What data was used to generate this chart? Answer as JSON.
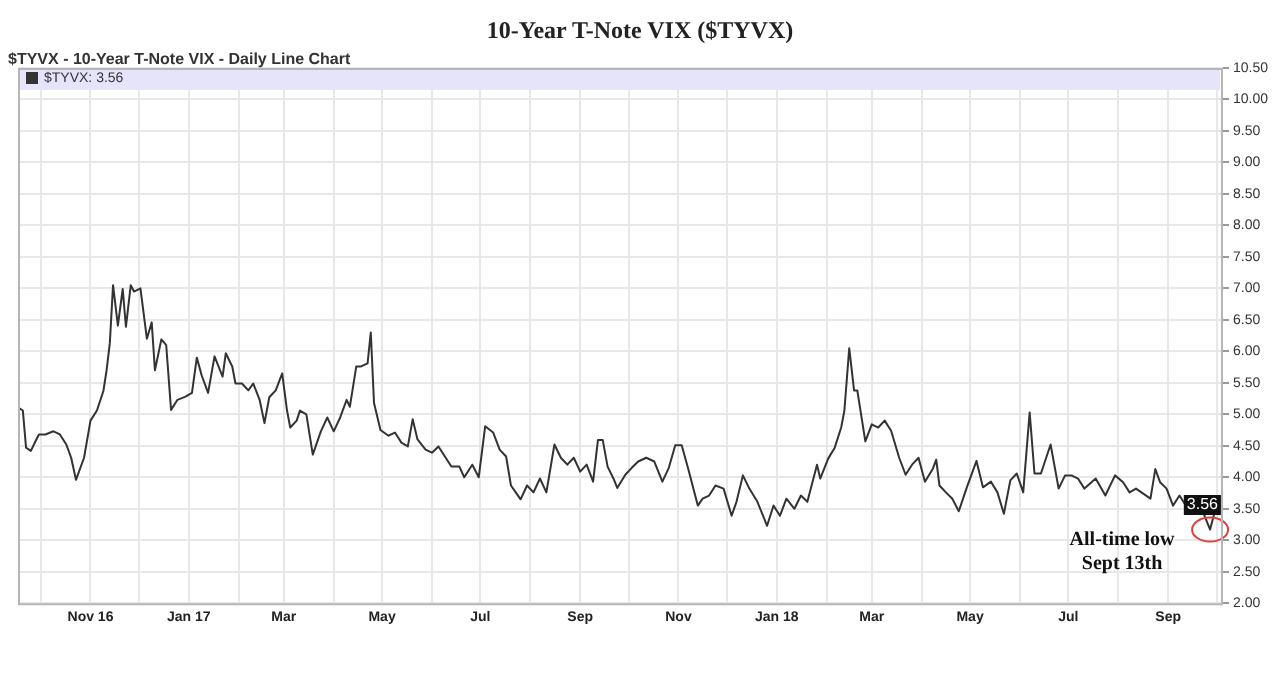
{
  "chart_data": {
    "type": "line",
    "title": "10-Year T-Note VIX ($TYVX)",
    "subtitle": "$TYVX - 10-Year T-Note VIX - Daily Line Chart",
    "x": [
      "2016-09-17",
      "2016-09-20",
      "2016-09-22",
      "2016-09-25",
      "2016-09-28",
      "2016-09-30",
      "2016-10-04",
      "2016-10-09",
      "2016-10-13",
      "2016-10-17",
      "2016-10-20",
      "2016-10-23",
      "2016-10-28",
      "2016-11-01",
      "2016-11-05",
      "2016-11-09",
      "2016-11-11",
      "2016-11-13",
      "2016-11-15",
      "2016-11-18",
      "2016-11-21",
      "2016-11-23",
      "2016-11-26",
      "2016-11-28",
      "2016-12-02",
      "2016-12-06",
      "2016-12-09",
      "2016-12-11",
      "2016-12-15",
      "2016-12-18",
      "2016-12-21",
      "2016-12-25",
      "2016-12-30",
      "2017-01-03",
      "2017-01-06",
      "2017-01-09",
      "2017-01-13",
      "2017-01-17",
      "2017-01-22",
      "2017-01-24",
      "2017-01-28",
      "2017-01-30",
      "2017-02-03",
      "2017-02-07",
      "2017-02-10",
      "2017-02-14",
      "2017-02-17",
      "2017-02-20",
      "2017-02-24",
      "2017-02-28",
      "2017-03-03",
      "2017-03-05",
      "2017-03-09",
      "2017-03-11",
      "2017-03-15",
      "2017-03-19",
      "2017-03-24",
      "2017-03-28",
      "2017-04-01",
      "2017-04-05",
      "2017-04-09",
      "2017-04-11",
      "2017-04-15",
      "2017-04-18",
      "2017-04-22",
      "2017-04-24",
      "2017-04-26",
      "2017-04-30",
      "2017-05-05",
      "2017-05-09",
      "2017-05-13",
      "2017-05-17",
      "2017-05-20",
      "2017-05-23",
      "2017-05-28",
      "2017-06-01",
      "2017-06-05",
      "2017-06-09",
      "2017-06-13",
      "2017-06-18",
      "2017-06-21",
      "2017-06-26",
      "2017-06-30",
      "2017-07-04",
      "2017-07-09",
      "2017-07-13",
      "2017-07-17",
      "2017-07-20",
      "2017-07-23",
      "2017-07-26",
      "2017-07-30",
      "2017-08-03",
      "2017-08-07",
      "2017-08-11",
      "2017-08-16",
      "2017-08-20",
      "2017-08-24",
      "2017-08-28",
      "2017-09-01",
      "2017-09-05",
      "2017-09-09",
      "2017-09-12",
      "2017-09-15",
      "2017-09-18",
      "2017-09-22",
      "2017-09-24",
      "2017-09-29",
      "2017-10-03",
      "2017-10-07",
      "2017-10-12",
      "2017-10-17",
      "2017-10-22",
      "2017-10-26",
      "2017-10-30",
      "2017-11-03",
      "2017-11-07",
      "2017-11-13",
      "2017-11-16",
      "2017-11-20",
      "2017-11-24",
      "2017-11-29",
      "2017-12-04",
      "2017-12-07",
      "2017-12-11",
      "2017-12-15",
      "2017-12-20",
      "2017-12-26",
      "2017-12-30",
      "2018-01-03",
      "2018-01-07",
      "2018-01-12",
      "2018-01-16",
      "2018-01-20",
      "2018-01-26",
      "2018-01-28",
      "2018-02-02",
      "2018-02-06",
      "2018-02-10",
      "2018-02-12",
      "2018-02-15",
      "2018-02-18",
      "2018-02-20",
      "2018-02-25",
      "2018-03-01",
      "2018-03-05",
      "2018-03-09",
      "2018-03-13",
      "2018-03-18",
      "2018-03-22",
      "2018-03-26",
      "2018-03-30",
      "2018-04-03",
      "2018-04-08",
      "2018-04-10",
      "2018-04-12",
      "2018-04-16",
      "2018-04-20",
      "2018-04-24",
      "2018-04-29",
      "2018-05-05",
      "2018-05-09",
      "2018-05-14",
      "2018-05-18",
      "2018-05-22",
      "2018-05-26",
      "2018-05-30",
      "2018-06-03",
      "2018-06-07",
      "2018-06-10",
      "2018-06-14",
      "2018-06-20",
      "2018-06-25",
      "2018-06-29",
      "2018-07-03",
      "2018-07-07",
      "2018-07-11",
      "2018-07-18",
      "2018-07-24",
      "2018-07-30",
      "2018-08-04",
      "2018-08-08",
      "2018-08-12",
      "2018-08-21",
      "2018-08-24",
      "2018-08-27",
      "2018-08-31",
      "2018-09-04",
      "2018-09-08",
      "2018-09-12",
      "2018-09-16",
      "2018-09-21",
      "2018-09-27",
      "2018-10-01"
    ],
    "series": [
      {
        "name": "$TYVX: 3.56",
        "color": "#333333",
        "values": [
          5.11,
          5.06,
          4.47,
          4.42,
          4.58,
          4.68,
          4.68,
          4.73,
          4.68,
          4.52,
          4.31,
          3.96,
          4.31,
          4.9,
          5.06,
          5.37,
          5.7,
          6.13,
          7.05,
          6.41,
          6.99,
          6.39,
          7.05,
          6.95,
          7.0,
          6.2,
          6.46,
          5.7,
          6.19,
          6.1,
          5.07,
          5.23,
          5.28,
          5.34,
          5.9,
          5.62,
          5.34,
          5.92,
          5.6,
          5.97,
          5.76,
          5.49,
          5.49,
          5.38,
          5.49,
          5.23,
          4.86,
          5.27,
          5.38,
          5.65,
          5.06,
          4.79,
          4.9,
          5.06,
          5.0,
          4.36,
          4.73,
          4.95,
          4.73,
          4.95,
          5.23,
          5.12,
          5.76,
          5.76,
          5.81,
          6.3,
          5.18,
          4.75,
          4.66,
          4.71,
          4.55,
          4.49,
          4.92,
          4.6,
          4.44,
          4.39,
          4.49,
          4.33,
          4.17,
          4.17,
          4.0,
          4.2,
          4.0,
          4.81,
          4.71,
          4.44,
          4.33,
          3.87,
          3.76,
          3.65,
          3.87,
          3.76,
          3.98,
          3.76,
          4.52,
          4.31,
          4.2,
          4.31,
          4.09,
          4.2,
          3.93,
          4.59,
          4.59,
          4.17,
          3.96,
          3.83,
          4.04,
          4.15,
          4.25,
          4.31,
          4.25,
          3.93,
          4.15,
          4.51,
          4.51,
          4.14,
          3.55,
          3.66,
          3.71,
          3.87,
          3.82,
          3.39,
          3.61,
          4.03,
          3.82,
          3.61,
          3.23,
          3.55,
          3.39,
          3.66,
          3.5,
          3.71,
          3.61,
          4.2,
          3.98,
          4.3,
          4.47,
          4.79,
          5.06,
          6.05,
          5.38,
          5.38,
          4.57,
          4.84,
          4.79,
          4.9,
          4.74,
          4.31,
          4.04,
          4.2,
          4.31,
          3.93,
          4.14,
          4.28,
          3.87,
          3.76,
          3.66,
          3.46,
          3.84,
          4.26,
          3.84,
          3.93,
          3.76,
          3.42,
          3.95,
          4.06,
          3.76,
          5.03,
          4.06,
          4.06,
          4.52,
          3.82,
          4.03,
          4.03,
          3.98,
          3.82,
          3.98,
          3.71,
          4.03,
          3.92,
          3.76,
          3.82,
          3.66,
          4.13,
          3.92,
          3.82,
          3.55,
          3.71,
          3.55,
          3.66,
          3.55,
          3.17,
          3.56
        ]
      }
    ],
    "xlim": [
      "2016-09-17",
      "2018-10-05"
    ],
    "xticks": [
      {
        "value": "2016-10-01",
        "label": null
      },
      {
        "value": "2016-11-01",
        "label": "Nov 16"
      },
      {
        "value": "2016-12-01",
        "label": null
      },
      {
        "value": "2017-01-01",
        "label": "Jan 17"
      },
      {
        "value": "2017-02-01",
        "label": null
      },
      {
        "value": "2017-03-01",
        "label": "Mar"
      },
      {
        "value": "2017-04-01",
        "label": null
      },
      {
        "value": "2017-05-01",
        "label": "May"
      },
      {
        "value": "2017-06-01",
        "label": null
      },
      {
        "value": "2017-07-01",
        "label": "Jul"
      },
      {
        "value": "2017-08-01",
        "label": null
      },
      {
        "value": "2017-09-01",
        "label": "Sep"
      },
      {
        "value": "2017-10-01",
        "label": null
      },
      {
        "value": "2017-11-01",
        "label": "Nov"
      },
      {
        "value": "2017-12-01",
        "label": null
      },
      {
        "value": "2018-01-01",
        "label": "Jan 18"
      },
      {
        "value": "2018-02-01",
        "label": null
      },
      {
        "value": "2018-03-01",
        "label": "Mar"
      },
      {
        "value": "2018-04-01",
        "label": null
      },
      {
        "value": "2018-05-01",
        "label": "May"
      },
      {
        "value": "2018-06-01",
        "label": null
      },
      {
        "value": "2018-07-01",
        "label": "Jul"
      },
      {
        "value": "2018-08-01",
        "label": null
      },
      {
        "value": "2018-09-01",
        "label": "Sep"
      },
      {
        "value": "2018-10-01",
        "label": null
      }
    ],
    "ylim": [
      2,
      10.5
    ],
    "yticks": [
      {
        "value": 2,
        "label": "2.00"
      },
      {
        "value": 2.5,
        "label": "2.50"
      },
      {
        "value": 3,
        "label": "3.00"
      },
      {
        "value": 3.5,
        "label": "3.50"
      },
      {
        "value": 4,
        "label": "4.00"
      },
      {
        "value": 4.5,
        "label": "4.50"
      },
      {
        "value": 5,
        "label": "5.00"
      },
      {
        "value": 5.5,
        "label": "5.50"
      },
      {
        "value": 6,
        "label": "6.00"
      },
      {
        "value": 6.5,
        "label": "6.50"
      },
      {
        "value": 7,
        "label": "7.00"
      },
      {
        "value": 7.5,
        "label": "7.50"
      },
      {
        "value": 8,
        "label": "8.00"
      },
      {
        "value": 8.5,
        "label": "8.50"
      },
      {
        "value": 9,
        "label": "9.00"
      },
      {
        "value": 9.5,
        "label": "9.50"
      },
      {
        "value": 10,
        "label": "10.00"
      },
      {
        "value": 10.5,
        "label": "10.50"
      }
    ],
    "annotations": [
      {
        "text": "All-time low\nSept 13th",
        "x": "2018-09-27",
        "y": 3.17
      },
      {
        "text": "3.56",
        "x": "2018-10-01",
        "y": 3.56
      }
    ],
    "grid": true,
    "legend": "top left",
    "marker": "none",
    "line_style": "solid"
  }
}
